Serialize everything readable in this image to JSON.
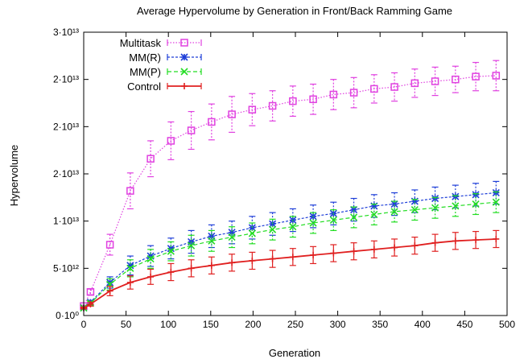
{
  "chart_data": {
    "type": "line",
    "title": "Average Hypervolume by Generation in Front/Back Ramming Game",
    "xlabel": "Generation",
    "ylabel": "Hypervolume",
    "xlim": [
      0,
      500
    ],
    "ylim": [
      0,
      30000000000000
    ],
    "grid": false,
    "legend_position": "top-left",
    "xticks": [
      0,
      50,
      100,
      150,
      200,
      250,
      300,
      350,
      400,
      450,
      500
    ],
    "xtick_labels": [
      "0",
      "50",
      "100",
      "150",
      "200",
      "250",
      "300",
      "350",
      "400",
      "450",
      "500"
    ],
    "yticks": [
      0,
      5000000000000,
      10000000000000,
      15000000000000,
      20000000000000,
      25000000000000,
      30000000000000
    ],
    "ytick_labels": [
      "0·10⁰",
      "5·10¹²",
      "1·10¹³",
      "2·10¹³",
      "2·10¹³",
      "2·10¹³",
      "3·10¹³"
    ],
    "x": [
      0,
      8,
      31,
      55,
      79,
      103,
      127,
      151,
      175,
      199,
      223,
      247,
      271,
      295,
      319,
      343,
      367,
      391,
      415,
      439,
      463,
      487
    ],
    "series": [
      {
        "name": "Multitask",
        "color": "#e040e0",
        "marker": "square",
        "values": [
          1000000000000,
          2500000000000,
          7500000000000,
          13200000000000,
          16600000000000,
          18500000000000,
          19600000000000,
          20500000000000,
          21300000000000,
          21800000000000,
          22200000000000,
          22700000000000,
          22900000000000,
          23400000000000,
          23600000000000,
          24000000000000,
          24200000000000,
          24600000000000,
          24800000000000,
          25000000000000,
          25300000000000,
          25400000000000
        ],
        "errors": [
          100000000000,
          300000000000,
          1100000000000,
          1900000000000,
          1900000000000,
          2000000000000,
          2000000000000,
          1900000000000,
          1900000000000,
          1700000000000,
          1600000000000,
          1600000000000,
          1600000000000,
          1600000000000,
          1600000000000,
          1500000000000,
          1500000000000,
          1500000000000,
          1500000000000,
          1400000000000,
          1500000000000,
          1600000000000
        ]
      },
      {
        "name": "MM(R)",
        "color": "#1f3fd8",
        "marker": "star",
        "values": [
          800000000000,
          1400000000000,
          3500000000000,
          5300000000000,
          6300000000000,
          7100000000000,
          7800000000000,
          8400000000000,
          8800000000000,
          9300000000000,
          9700000000000,
          10100000000000,
          10500000000000,
          10800000000000,
          11200000000000,
          11600000000000,
          11800000000000,
          12100000000000,
          12400000000000,
          12600000000000,
          12800000000000,
          13000000000000
        ],
        "errors": [
          100000000000,
          200000000000,
          600000000000,
          1000000000000,
          1100000000000,
          1100000000000,
          1200000000000,
          1200000000000,
          1200000000000,
          1200000000000,
          1200000000000,
          1200000000000,
          1200000000000,
          1200000000000,
          1200000000000,
          1200000000000,
          1200000000000,
          1200000000000,
          1200000000000,
          1200000000000,
          1200000000000,
          1200000000000
        ]
      },
      {
        "name": "MM(P)",
        "color": "#22dd22",
        "marker": "cross",
        "values": [
          800000000000,
          1300000000000,
          3300000000000,
          5000000000000,
          6000000000000,
          6800000000000,
          7400000000000,
          7900000000000,
          8300000000000,
          8700000000000,
          9100000000000,
          9400000000000,
          9800000000000,
          10100000000000,
          10400000000000,
          10700000000000,
          11000000000000,
          11200000000000,
          11400000000000,
          11600000000000,
          11800000000000,
          12000000000000
        ],
        "errors": [
          100000000000,
          200000000000,
          600000000000,
          900000000000,
          1000000000000,
          1000000000000,
          1100000000000,
          1100000000000,
          1100000000000,
          1100000000000,
          1100000000000,
          1100000000000,
          1100000000000,
          1100000000000,
          1100000000000,
          1100000000000,
          1100000000000,
          1100000000000,
          1100000000000,
          1100000000000,
          1100000000000,
          1100000000000
        ]
      },
      {
        "name": "Control",
        "color": "#e02020",
        "marker": "plus",
        "values": [
          800000000000,
          1200000000000,
          2600000000000,
          3500000000000,
          4100000000000,
          4600000000000,
          5000000000000,
          5300000000000,
          5600000000000,
          5800000000000,
          6000000000000,
          6200000000000,
          6400000000000,
          6600000000000,
          6800000000000,
          7000000000000,
          7200000000000,
          7400000000000,
          7700000000000,
          7900000000000,
          8000000000000,
          8100000000000
        ],
        "errors": [
          100000000000,
          200000000000,
          500000000000,
          700000000000,
          800000000000,
          900000000000,
          900000000000,
          900000000000,
          900000000000,
          900000000000,
          900000000000,
          900000000000,
          900000000000,
          900000000000,
          900000000000,
          900000000000,
          900000000000,
          900000000000,
          900000000000,
          900000000000,
          900000000000,
          900000000000
        ]
      }
    ]
  }
}
